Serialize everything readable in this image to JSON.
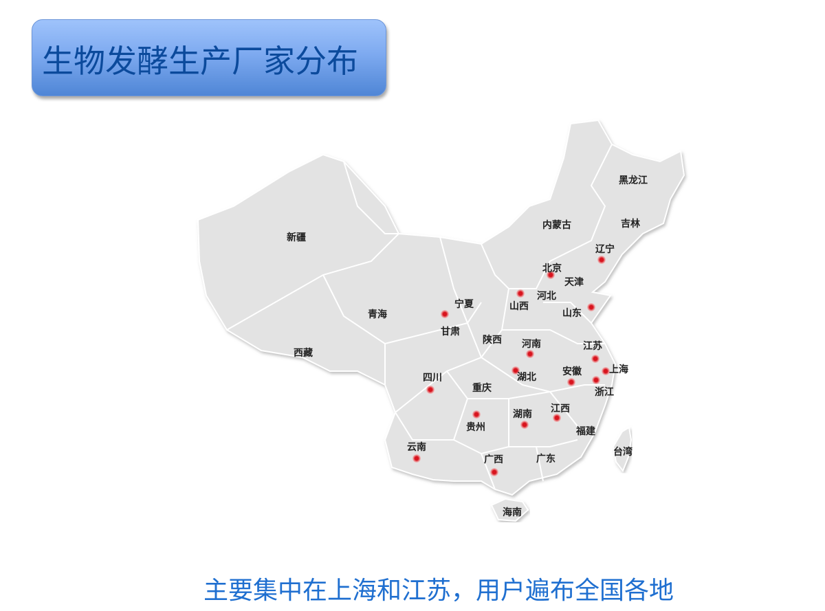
{
  "title": "生物发酵生产厂家分布",
  "caption": "主要集中在上海和江苏，用户遍布全国各地",
  "colors": {
    "title_text": "#0b4a9c",
    "caption": "#1f6fd0",
    "map_fill": "#e3e3e3",
    "marker": "#d8141e"
  },
  "provinces": [
    {
      "name": "黑龙江",
      "marker": false
    },
    {
      "name": "吉林",
      "marker": false
    },
    {
      "name": "辽宁",
      "marker": true
    },
    {
      "name": "内蒙古",
      "marker": false
    },
    {
      "name": "北京",
      "marker": true
    },
    {
      "name": "天津",
      "marker": false
    },
    {
      "name": "河北",
      "marker": false
    },
    {
      "name": "山西",
      "marker": true
    },
    {
      "name": "山东",
      "marker": true
    },
    {
      "name": "新疆",
      "marker": false
    },
    {
      "name": "青海",
      "marker": false
    },
    {
      "name": "西藏",
      "marker": false
    },
    {
      "name": "宁夏",
      "marker": false
    },
    {
      "name": "甘肃",
      "marker": true
    },
    {
      "name": "陕西",
      "marker": false
    },
    {
      "name": "河南",
      "marker": true
    },
    {
      "name": "江苏",
      "marker": true
    },
    {
      "name": "上海",
      "marker": true
    },
    {
      "name": "安徽",
      "marker": true
    },
    {
      "name": "浙江",
      "marker": true
    },
    {
      "name": "湖北",
      "marker": true
    },
    {
      "name": "四川",
      "marker": true
    },
    {
      "name": "重庆",
      "marker": false
    },
    {
      "name": "贵州",
      "marker": true
    },
    {
      "name": "湖南",
      "marker": true
    },
    {
      "name": "江西",
      "marker": true
    },
    {
      "name": "福建",
      "marker": false
    },
    {
      "name": "台湾",
      "marker": false
    },
    {
      "name": "云南",
      "marker": true
    },
    {
      "name": "广西",
      "marker": true
    },
    {
      "name": "广东",
      "marker": false
    },
    {
      "name": "海南",
      "marker": false
    }
  ]
}
